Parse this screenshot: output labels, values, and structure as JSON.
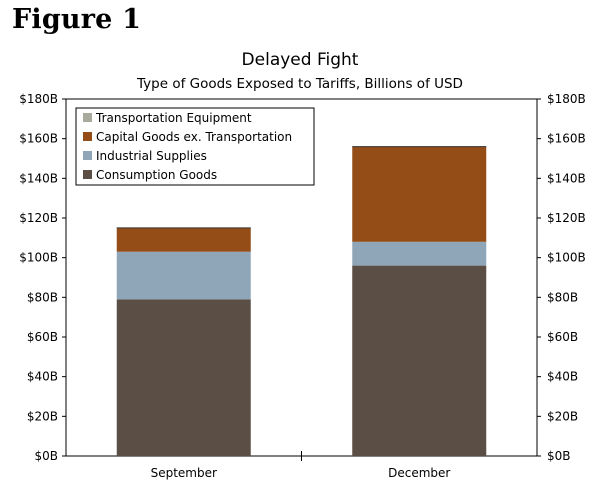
{
  "figure_label": "Figure 1",
  "chart_data": {
    "type": "bar",
    "stacked": true,
    "title": "Delayed Fight",
    "subtitle": "Type of Goods Exposed to Tariffs, Billions of USD",
    "categories": [
      "September",
      "December"
    ],
    "series": [
      {
        "name": "Consumption Goods",
        "color": "#5b4e45",
        "values": [
          79,
          96
        ]
      },
      {
        "name": "Industrial Supplies",
        "color": "#8fa6b8",
        "values": [
          24,
          12
        ]
      },
      {
        "name": "Capital Goods ex. Transportation",
        "color": "#944d17",
        "values": [
          12,
          48
        ]
      },
      {
        "name": "Transportation Equipment",
        "color": "#a9aa9e",
        "values": [
          0,
          0
        ]
      }
    ],
    "legend_order": [
      3,
      2,
      1,
      0
    ],
    "ylim": [
      0,
      180
    ],
    "yticks": [
      0,
      20,
      40,
      60,
      80,
      100,
      120,
      140,
      160,
      180
    ],
    "ytick_labels": [
      "$0B",
      "$20B",
      "$40B",
      "$60B",
      "$80B",
      "$100B",
      "$120B",
      "$140B",
      "$160B",
      "$180B"
    ],
    "legend_position": "top-left",
    "grid": false,
    "dual_axis_labels": true
  }
}
